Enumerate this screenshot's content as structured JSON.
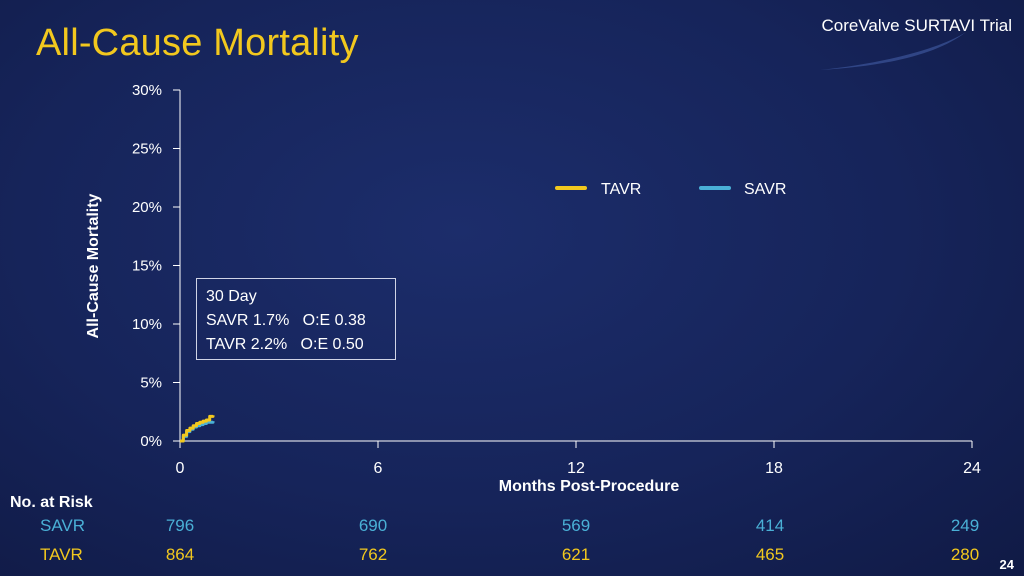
{
  "slide": {
    "title": "All-Cause Mortality",
    "brand": "CoreValve SURTAVI Trial",
    "page_number": "24"
  },
  "callout": {
    "line1": "30 Day",
    "line2": "SAVR 1.7%   O:E 0.38",
    "line3": "TAVR 2.2%   O:E 0.50"
  },
  "risk_table": {
    "title": "No. at Risk",
    "rows": [
      {
        "label": "SAVR",
        "values": [
          "796",
          "690",
          "569",
          "414",
          "249"
        ]
      },
      {
        "label": "TAVR",
        "values": [
          "864",
          "762",
          "621",
          "465",
          "280"
        ]
      }
    ]
  },
  "colors": {
    "tavr": "#f2c81e",
    "savr": "#4ab0d6",
    "title": "#f2c81e",
    "background": "#16245a"
  },
  "chart_data": {
    "type": "line",
    "xlabel": "Months Post-Procedure",
    "ylabel": "All-Cause Mortality",
    "xlim": [
      0,
      24
    ],
    "ylim": [
      0,
      30
    ],
    "x_ticks": [
      0,
      6,
      12,
      18,
      24
    ],
    "x_tick_labels": [
      "0",
      "6",
      "12",
      "18",
      "24"
    ],
    "y_ticks": [
      0,
      5,
      10,
      15,
      20,
      25,
      30
    ],
    "y_tick_labels": [
      "0%",
      "5%",
      "10%",
      "15%",
      "20%",
      "25%",
      "30%"
    ],
    "grid": false,
    "legend": "top-right",
    "series": [
      {
        "name": "TAVR",
        "color": "#f2c81e",
        "x": [
          0,
          0.1,
          0.2,
          0.3,
          0.4,
          0.5,
          0.6,
          0.7,
          0.8,
          0.9,
          1.0
        ],
        "y": [
          0,
          0.5,
          0.9,
          1.1,
          1.3,
          1.5,
          1.6,
          1.7,
          1.8,
          2.1,
          2.2
        ]
      },
      {
        "name": "SAVR",
        "color": "#4ab0d6",
        "x": [
          0,
          0.1,
          0.2,
          0.3,
          0.4,
          0.5,
          0.6,
          0.7,
          0.8,
          0.9,
          1.0
        ],
        "y": [
          0,
          0.4,
          0.8,
          1.0,
          1.2,
          1.3,
          1.4,
          1.5,
          1.6,
          1.6,
          1.7
        ]
      }
    ]
  }
}
